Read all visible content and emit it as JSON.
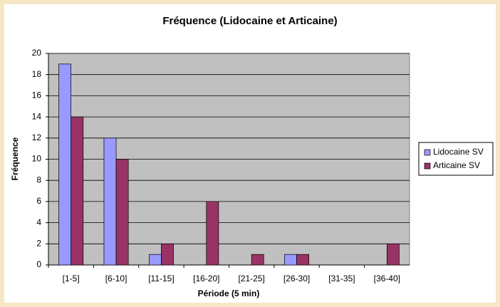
{
  "chart_data": {
    "type": "bar",
    "title": "Fréquence (Lidocaine et Articaine)",
    "x_label": "Période (5 min)",
    "y_label": "Fréquence",
    "categories": [
      "[1-5]",
      "[6-10]",
      "[11-15]",
      "[16-20]",
      "[21-25]",
      "[26-30]",
      "[31-35]",
      "[36-40]"
    ],
    "series": [
      {
        "name": "Lidocaine SV",
        "color": "#9999ff",
        "values": [
          19,
          12,
          1,
          0,
          0,
          1,
          0,
          0
        ]
      },
      {
        "name": "Articaine SV",
        "color": "#993366",
        "values": [
          14,
          10,
          2,
          6,
          1,
          1,
          0,
          2
        ]
      }
    ],
    "ylim": [
      0,
      20
    ],
    "yticks": [
      0,
      2,
      4,
      6,
      8,
      10,
      12,
      14,
      16,
      18,
      20
    ],
    "grid": true,
    "legend": "right"
  }
}
